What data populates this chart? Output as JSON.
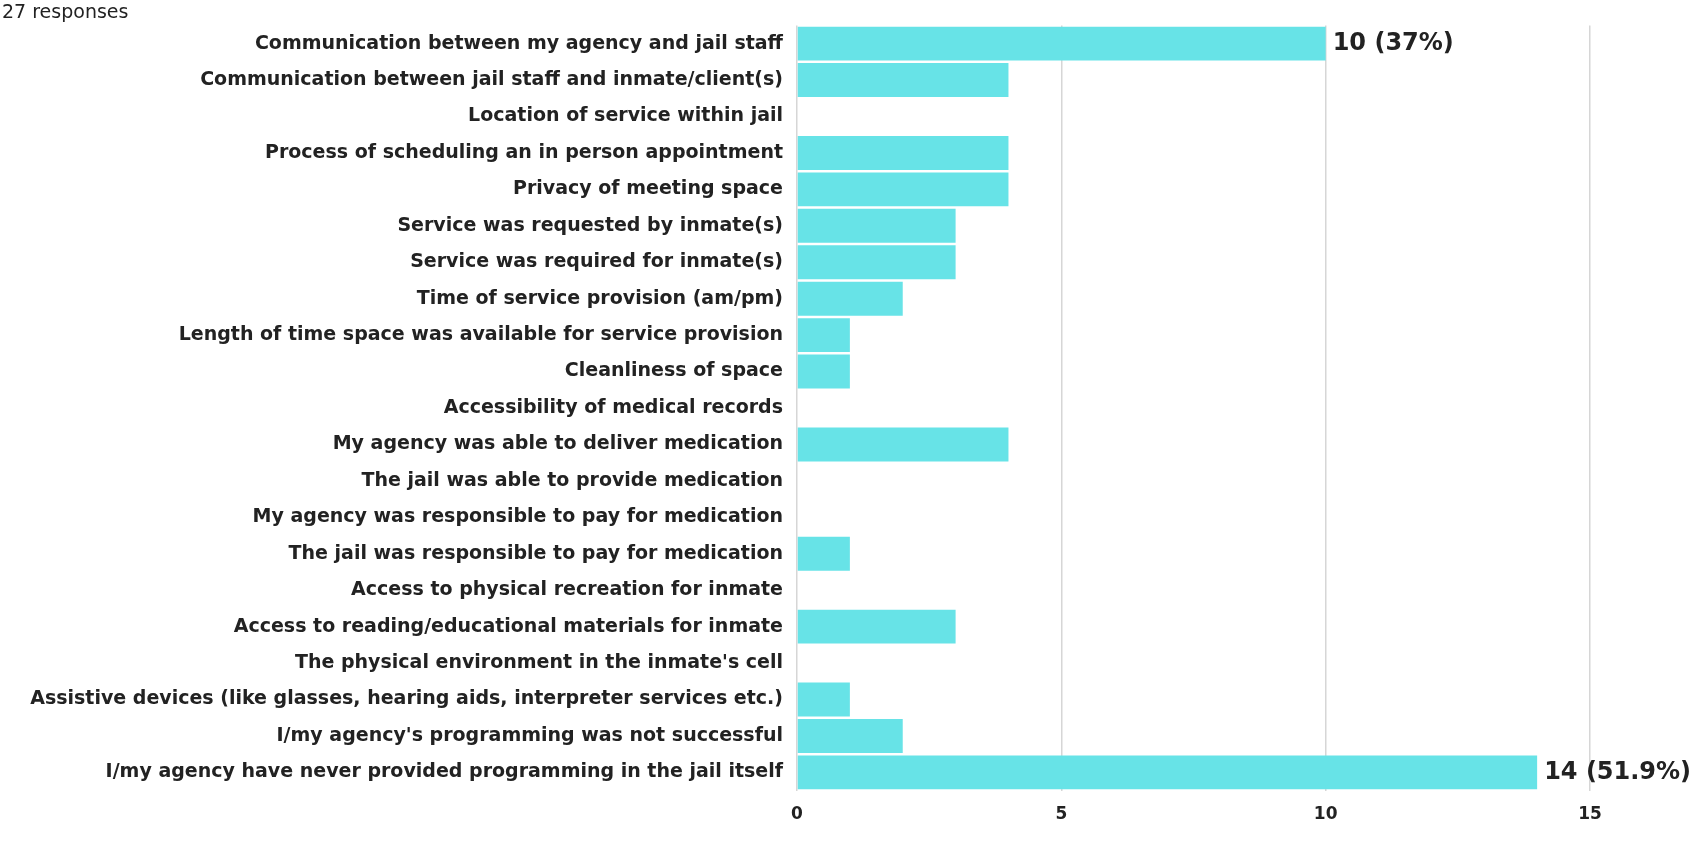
{
  "chart_data": {
    "type": "bar",
    "orientation": "horizontal",
    "annotations": [
      "27 responses"
    ],
    "categories": [
      "Communication between my agency and jail staff",
      "Communication between jail staff and inmate/client(s)",
      "Location of service within jail",
      "Process of scheduling an in person appointment",
      "Privacy of meeting space",
      "Service was requested by inmate(s)",
      "Service was required for inmate(s)",
      "Time of service provision (am/pm)",
      "Length of time space was available for service provision",
      "Cleanliness of space",
      "Accessibility of medical records",
      "My agency was able to deliver medication",
      "The jail was able to provide medication",
      "My agency was responsible to pay for medication",
      "The jail was responsible to pay for medication",
      "Access to physical recreation for inmate",
      "Access to reading/educational materials for inmate",
      "The physical environment in the inmate's cell",
      "Assistive devices (like glasses, hearing aids, interpreter services etc.)",
      "I/my agency's programming was not successful",
      "I/my agency have never provided programming in the jail itself"
    ],
    "values": [
      10,
      4,
      0,
      4,
      4,
      3,
      3,
      2,
      1,
      1,
      0,
      4,
      0,
      0,
      1,
      0,
      3,
      0,
      1,
      2,
      14
    ],
    "value_labels": [
      "10 (37%)",
      null,
      null,
      null,
      null,
      null,
      null,
      null,
      null,
      null,
      null,
      null,
      null,
      null,
      null,
      null,
      null,
      null,
      null,
      null,
      "14 (51.9%)"
    ],
    "color": "#67e3e7",
    "xlim": [
      0,
      15
    ],
    "xticks": [
      0,
      5,
      10,
      15
    ],
    "grid": "x"
  }
}
